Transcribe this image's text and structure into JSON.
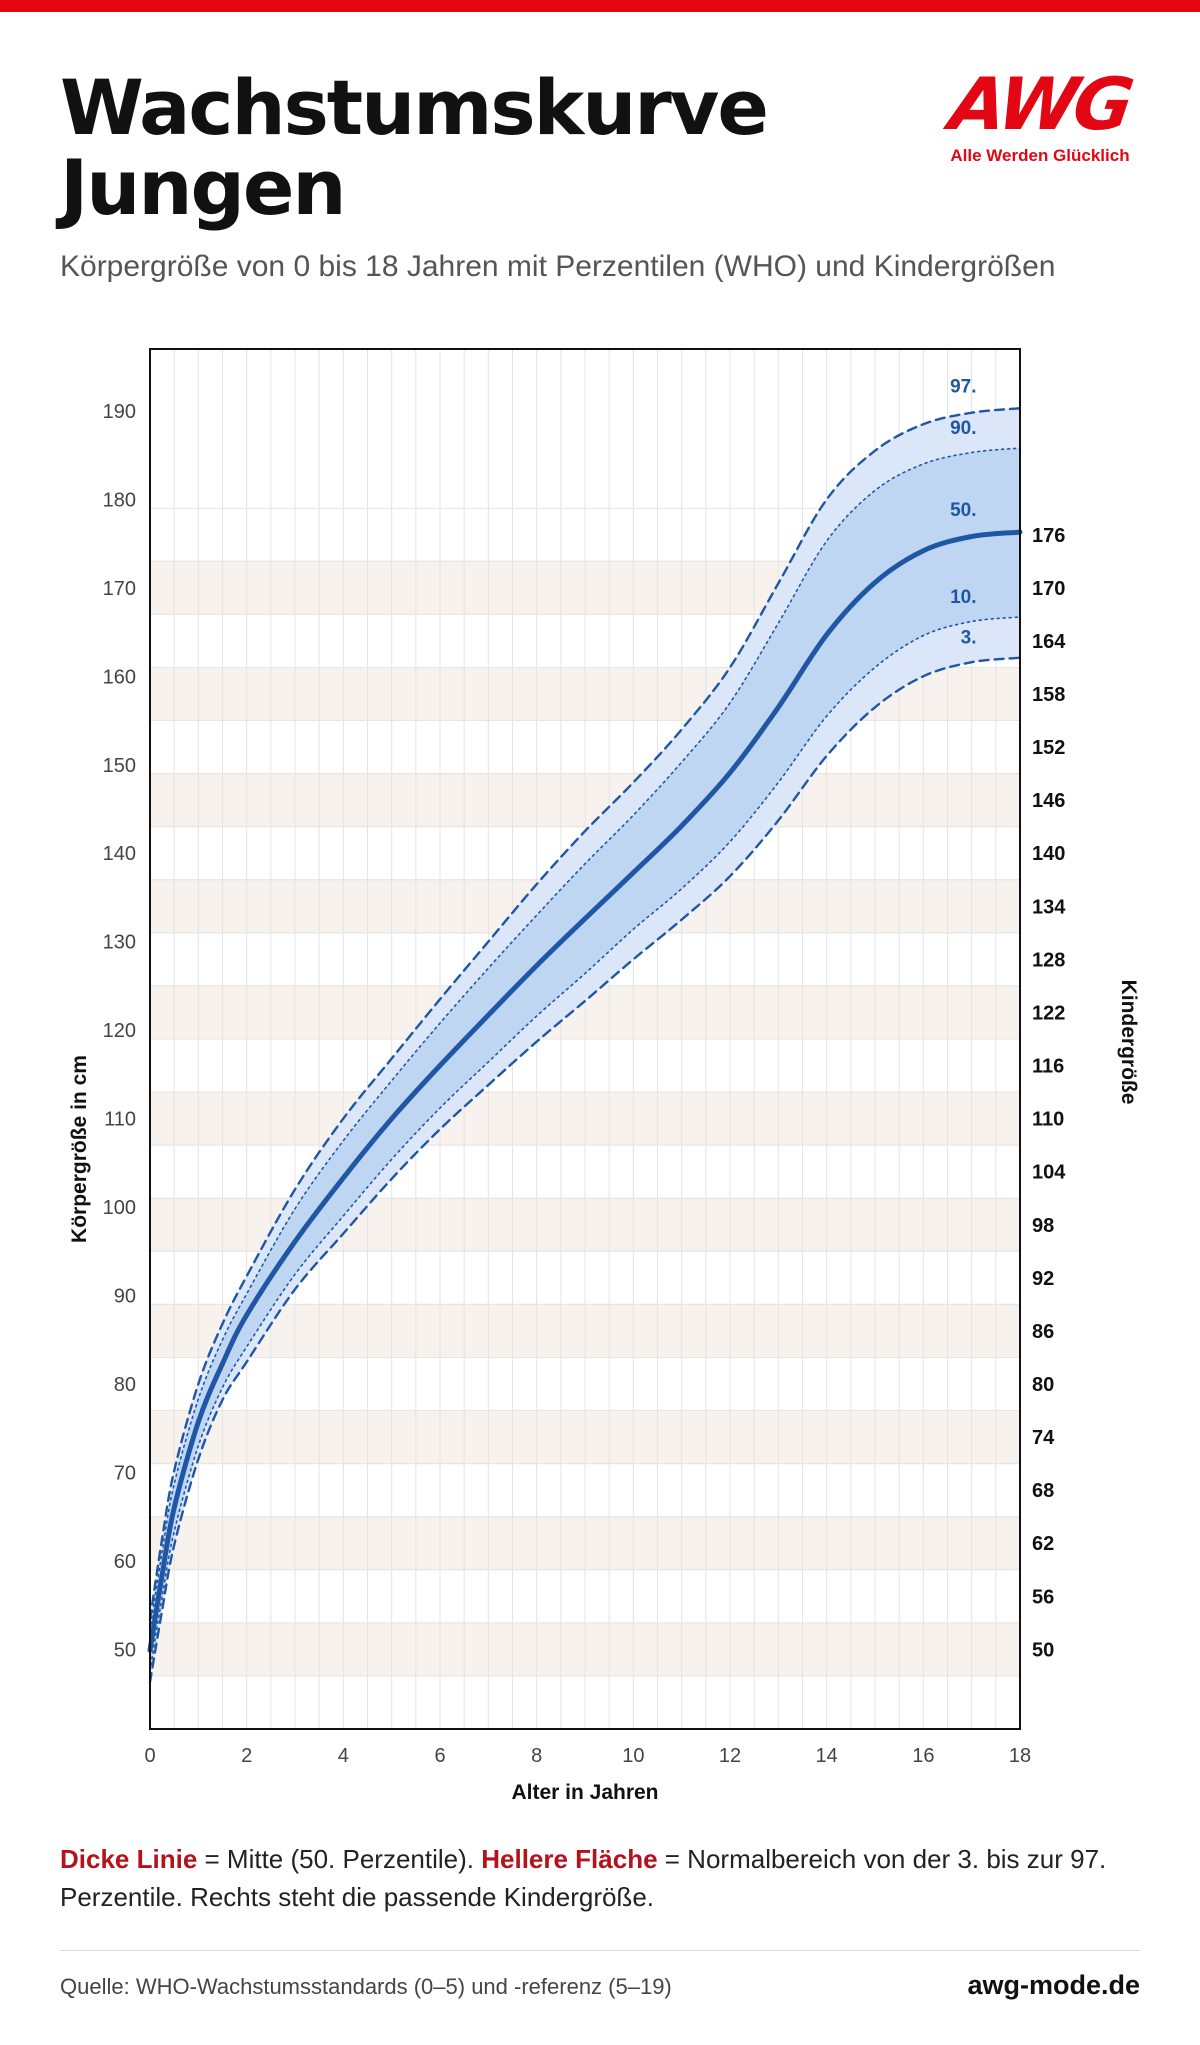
{
  "header": {
    "title_line1": "Wachstumskurve",
    "title_line2": "Jungen",
    "subtitle": "Körpergröße von 0 bis 18 Jahren mit Perzentilen (WHO) und Kindergrößen"
  },
  "logo": {
    "mark": "AWG",
    "tagline": "Alle Werden Glücklich"
  },
  "colors": {
    "brand_red": "#e30613",
    "line_blue": "#1f57a5",
    "band_outer": "#dbe7f8",
    "band_inner": "#bfd6f2",
    "stripe_beige": "#f7f2ee"
  },
  "chart_data": {
    "type": "line",
    "xlabel": "Alter in Jahren",
    "ylabel": "Körpergröße in cm",
    "y2label": "Kindergröße",
    "xlim": [
      0,
      18
    ],
    "ylim": [
      41,
      197
    ],
    "xticks": [
      0,
      2,
      4,
      6,
      8,
      10,
      12,
      14,
      16,
      18
    ],
    "yticks": [
      50,
      60,
      70,
      80,
      90,
      100,
      110,
      120,
      130,
      140,
      150,
      160,
      170,
      180,
      190
    ],
    "y2ticks": [
      50,
      56,
      62,
      68,
      74,
      80,
      86,
      92,
      98,
      104,
      110,
      116,
      122,
      128,
      134,
      140,
      146,
      152,
      158,
      164,
      170,
      176
    ],
    "grid": true,
    "x": [
      0,
      0.25,
      0.5,
      1,
      1.5,
      2,
      3,
      4,
      5,
      6,
      7,
      8,
      9,
      10,
      11,
      12,
      13,
      14,
      15,
      16,
      17,
      18
    ],
    "series": [
      {
        "name": "97.",
        "style": "dashed",
        "values": [
          53.4,
          62.5,
          70.2,
          80.0,
          86.8,
          92.2,
          102.0,
          110.0,
          116.8,
          123.5,
          130.0,
          136.5,
          142.5,
          148.0,
          154.0,
          161.0,
          170.5,
          180.0,
          185.5,
          188.5,
          189.8,
          190.3
        ]
      },
      {
        "name": "90.",
        "style": "dotted",
        "values": [
          52.2,
          61.0,
          68.7,
          78.3,
          85.0,
          90.2,
          99.8,
          107.5,
          114.3,
          120.8,
          127.0,
          133.0,
          138.8,
          144.3,
          150.3,
          157.0,
          166.0,
          175.3,
          181.0,
          184.0,
          185.3,
          185.8
        ]
      },
      {
        "name": "50.",
        "style": "solid",
        "values": [
          49.9,
          58.4,
          66.0,
          75.7,
          82.3,
          87.8,
          96.1,
          103.3,
          110.0,
          116.0,
          121.7,
          127.3,
          132.6,
          137.8,
          143.1,
          149.1,
          156.5,
          164.7,
          170.6,
          174.2,
          175.8,
          176.3
        ]
      },
      {
        "name": "10.",
        "style": "dotted",
        "values": [
          47.6,
          55.9,
          63.3,
          73.0,
          79.6,
          84.2,
          92.4,
          99.0,
          105.4,
          111.2,
          116.4,
          121.6,
          126.4,
          131.4,
          136.0,
          141.3,
          148.0,
          155.5,
          161.0,
          164.6,
          166.2,
          166.7
        ]
      },
      {
        "name": "3.",
        "style": "dashed",
        "values": [
          46.3,
          54.4,
          61.8,
          71.5,
          78.2,
          82.5,
          90.7,
          97.0,
          103.2,
          108.8,
          113.8,
          118.7,
          123.3,
          128.0,
          132.5,
          137.4,
          143.7,
          151.0,
          156.5,
          160.0,
          161.6,
          162.1
        ]
      }
    ]
  },
  "legend_note": {
    "part1": "Dicke Linie",
    "part2": " = Mitte (50. Perzentile). ",
    "part3": "Hellere Fläche",
    "part4": " = Normalbereich von der 3. bis zur 97. Perzentile. Rechts steht die passende Kindergröße."
  },
  "footer": {
    "source": "Quelle: WHO-Wachstumsstandards (0–5) und -referenz (5–19)",
    "site": "awg-mode.de"
  }
}
